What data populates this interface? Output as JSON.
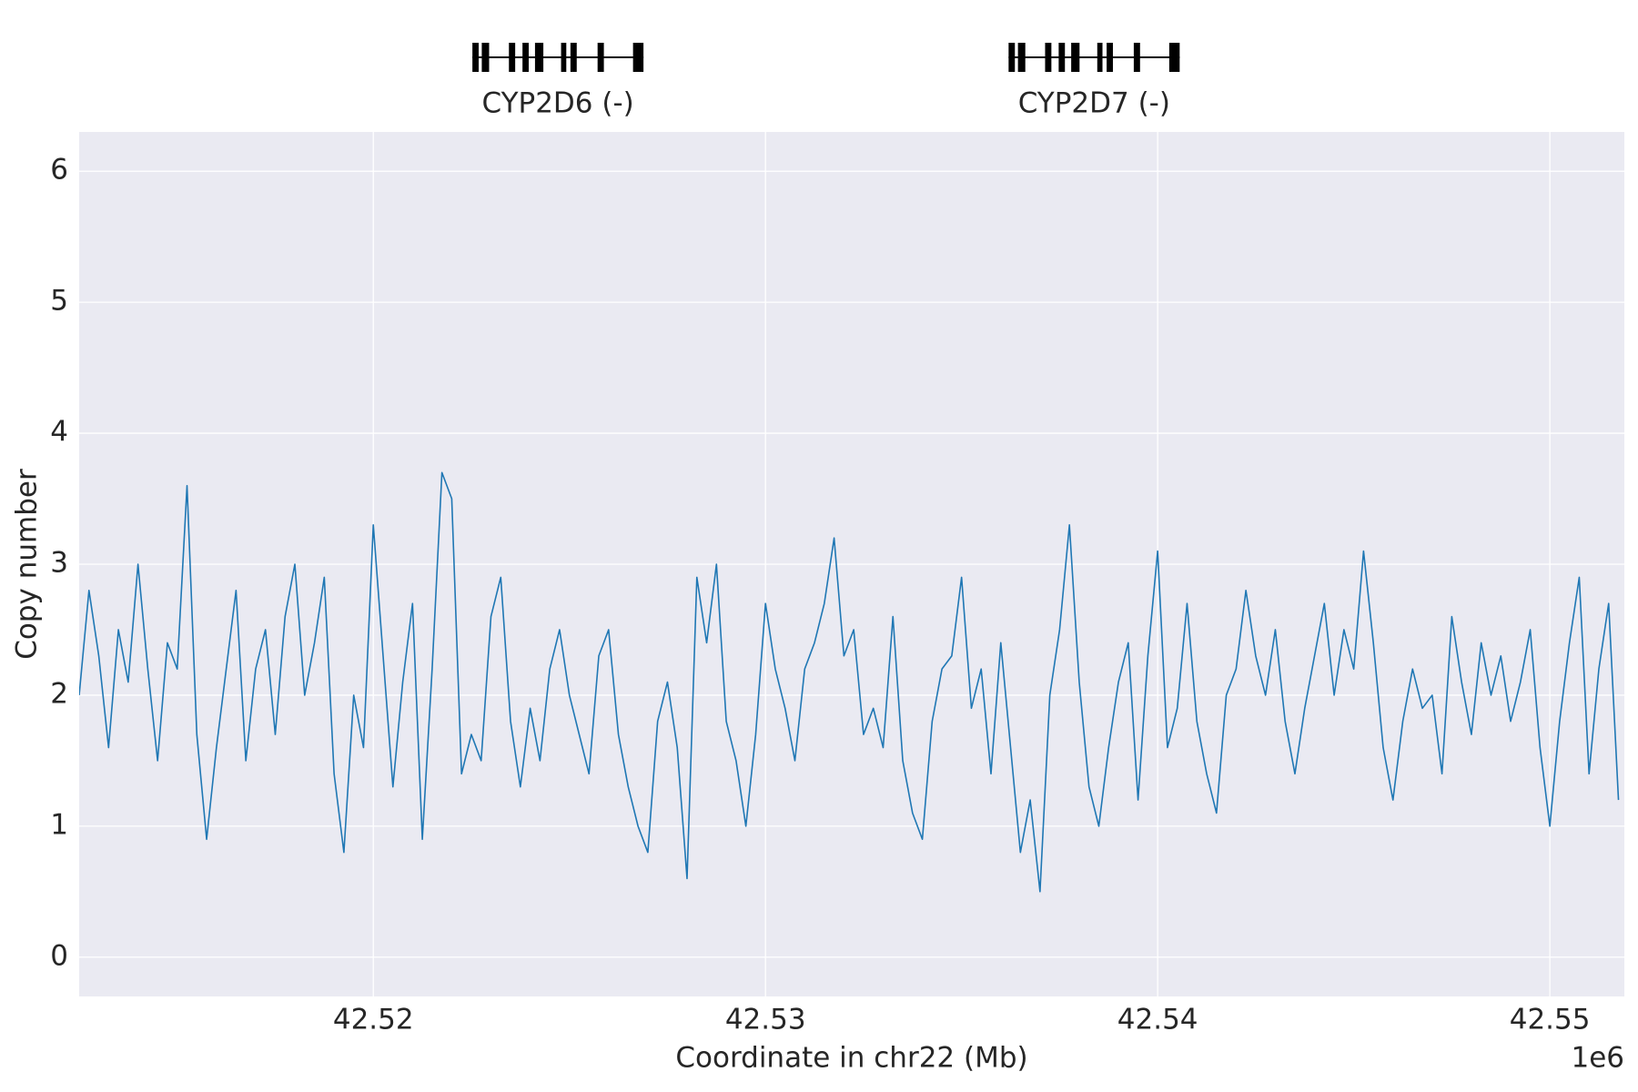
{
  "chart_data": {
    "type": "line",
    "xlabel": "Coordinate in chr22 (Mb)",
    "ylabel": "Copy number",
    "x_offset_label": "1e6",
    "color": "#1f77b4",
    "grid": true,
    "background": "#eaeaf2",
    "xlim": [
      42512500,
      42551900
    ],
    "ylim": [
      -0.3,
      6.3
    ],
    "xticks": [
      {
        "value": 42520000,
        "label": "42.52"
      },
      {
        "value": 42530000,
        "label": "42.53"
      },
      {
        "value": 42540000,
        "label": "42.54"
      },
      {
        "value": 42550000,
        "label": "42.55"
      }
    ],
    "yticks": [
      0,
      1,
      2,
      3,
      4,
      5,
      6
    ],
    "genes": [
      {
        "label": "CYP2D6 (-)",
        "exons": [
          [
            42522527,
            42522687
          ],
          [
            42522766,
            42522953
          ],
          [
            42523458,
            42523618
          ],
          [
            42523804,
            42523963
          ],
          [
            42524123,
            42524336
          ],
          [
            42524788,
            42524921
          ],
          [
            42525027,
            42525187
          ],
          [
            42525719,
            42525879
          ],
          [
            42526623,
            42526889
          ]
        ]
      },
      {
        "label": "CYP2D7 (-)",
        "exons": [
          [
            42536199,
            42536359
          ],
          [
            42536438,
            42536625
          ],
          [
            42537130,
            42537290
          ],
          [
            42537476,
            42537635
          ],
          [
            42537795,
            42538008
          ],
          [
            42538460,
            42538593
          ],
          [
            42538699,
            42538859
          ],
          [
            42539391,
            42539551
          ],
          [
            42540295,
            42540561
          ]
        ]
      }
    ],
    "x": [
      42512500,
      42512750,
      42513000,
      42513250,
      42513500,
      42513750,
      42514000,
      42514250,
      42514500,
      42514750,
      42515000,
      42515250,
      42515500,
      42515750,
      42516000,
      42516250,
      42516500,
      42516750,
      42517000,
      42517250,
      42517500,
      42517750,
      42518000,
      42518250,
      42518500,
      42518750,
      42519000,
      42519250,
      42519500,
      42519750,
      42520000,
      42520250,
      42520500,
      42520750,
      42521000,
      42521250,
      42521500,
      42521750,
      42522000,
      42522250,
      42522500,
      42522750,
      42523000,
      42523250,
      42523500,
      42523750,
      42524000,
      42524250,
      42524500,
      42524750,
      42525000,
      42525250,
      42525500,
      42525750,
      42526000,
      42526250,
      42526500,
      42526750,
      42527000,
      42527250,
      42527500,
      42527750,
      42528000,
      42528250,
      42528500,
      42528750,
      42529000,
      42529250,
      42529500,
      42529750,
      42530000,
      42530250,
      42530500,
      42530750,
      42531000,
      42531250,
      42531500,
      42531750,
      42532000,
      42532250,
      42532500,
      42532750,
      42533000,
      42533250,
      42533500,
      42533750,
      42534000,
      42534250,
      42534500,
      42534750,
      42535000,
      42535250,
      42535500,
      42535750,
      42536000,
      42536250,
      42536500,
      42536750,
      42537000,
      42537250,
      42537500,
      42537750,
      42538000,
      42538250,
      42538500,
      42538750,
      42539000,
      42539250,
      42539500,
      42539750,
      42540000,
      42540250,
      42540500,
      42540750,
      42541000,
      42541250,
      42541500,
      42541750,
      42542000,
      42542250,
      42542500,
      42542750,
      42543000,
      42543250,
      42543500,
      42543750,
      42544000,
      42544250,
      42544500,
      42544750,
      42545000,
      42545250,
      42545500,
      42545750,
      42546000,
      42546250,
      42546500,
      42546750,
      42547000,
      42547250,
      42547500,
      42547750,
      42548000,
      42548250,
      42548500,
      42548750,
      42549000,
      42549250,
      42549500,
      42549750,
      42550000,
      42550250,
      42550500,
      42550750,
      42551000,
      42551250,
      42551500,
      42551750
    ],
    "values": [
      2.0,
      2.8,
      2.3,
      1.6,
      2.5,
      2.1,
      3.0,
      2.2,
      1.5,
      2.4,
      2.2,
      3.6,
      1.7,
      0.9,
      1.6,
      2.2,
      2.8,
      1.5,
      2.2,
      2.5,
      1.7,
      2.6,
      3.0,
      2.0,
      2.4,
      2.9,
      1.4,
      0.8,
      2.0,
      1.6,
      3.3,
      2.3,
      1.3,
      2.1,
      2.7,
      0.9,
      2.2,
      3.7,
      3.5,
      1.4,
      1.7,
      1.5,
      2.6,
      2.9,
      1.8,
      1.3,
      1.9,
      1.5,
      2.2,
      2.5,
      2.0,
      1.7,
      1.4,
      2.3,
      2.5,
      1.7,
      1.3,
      1.0,
      0.8,
      1.8,
      2.1,
      1.6,
      0.6,
      2.9,
      2.4,
      3.0,
      1.8,
      1.5,
      1.0,
      1.7,
      2.7,
      2.2,
      1.9,
      1.5,
      2.2,
      2.4,
      2.7,
      3.2,
      2.3,
      2.5,
      1.7,
      1.9,
      1.6,
      2.6,
      1.5,
      1.1,
      0.9,
      1.8,
      2.2,
      2.3,
      2.9,
      1.9,
      2.2,
      1.4,
      2.4,
      1.6,
      0.8,
      1.2,
      0.5,
      2.0,
      2.5,
      3.3,
      2.1,
      1.3,
      1.0,
      1.6,
      2.1,
      2.4,
      1.2,
      2.3,
      3.1,
      1.6,
      1.9,
      2.7,
      1.8,
      1.4,
      1.1,
      2.0,
      2.2,
      2.8,
      2.3,
      2.0,
      2.5,
      1.8,
      1.4,
      1.9,
      2.3,
      2.7,
      2.0,
      2.5,
      2.2,
      3.1,
      2.4,
      1.6,
      1.2,
      1.8,
      2.2,
      1.9,
      2.0,
      1.4,
      2.6,
      2.1,
      1.7,
      2.4,
      2.0,
      2.3,
      1.8,
      2.1,
      2.5,
      1.6,
      1.0,
      1.8,
      2.4,
      2.9,
      1.4,
      2.2,
      2.7,
      1.2
    ]
  }
}
